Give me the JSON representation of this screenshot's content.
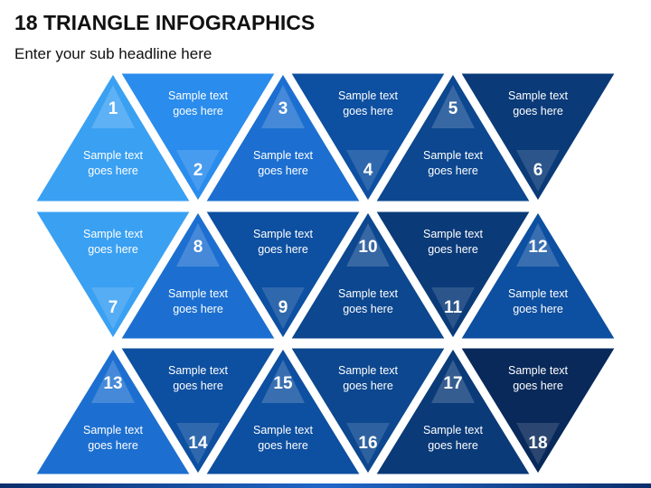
{
  "title": "18 TRIANGLE INFOGRAPHICS",
  "subtitle": "Enter your sub headline here",
  "triangles": [
    {
      "number": "1",
      "text": [
        "Sample text",
        "goes here"
      ],
      "color": "#3aa0f2"
    },
    {
      "number": "2",
      "text": [
        "Sample text",
        "goes here"
      ],
      "color": "#2a8cec"
    },
    {
      "number": "3",
      "text": [
        "Sample text",
        "goes here"
      ],
      "color": "#1c6fd0"
    },
    {
      "number": "4",
      "text": [
        "Sample text",
        "goes here"
      ],
      "color": "#0d4fa0"
    },
    {
      "number": "5",
      "text": [
        "Sample text",
        "goes here"
      ],
      "color": "#0c478f"
    },
    {
      "number": "6",
      "text": [
        "Sample text",
        "goes here"
      ],
      "color": "#0a3a78"
    },
    {
      "number": "7",
      "text": [
        "Sample text",
        "goes here"
      ],
      "color": "#3aa0f2"
    },
    {
      "number": "8",
      "text": [
        "Sample text",
        "goes here"
      ],
      "color": "#1c6fd0"
    },
    {
      "number": "9",
      "text": [
        "Sample text",
        "goes here"
      ],
      "color": "#0d4fa0"
    },
    {
      "number": "10",
      "text": [
        "Sample text",
        "goes here"
      ],
      "color": "#0c478f"
    },
    {
      "number": "11",
      "text": [
        "Sample text",
        "goes here"
      ],
      "color": "#0a3a78"
    },
    {
      "number": "12",
      "text": [
        "Sample text",
        "goes here"
      ],
      "color": "#0d4fa0"
    },
    {
      "number": "13",
      "text": [
        "Sample text",
        "goes here"
      ],
      "color": "#1c6fd0"
    },
    {
      "number": "14",
      "text": [
        "Sample text",
        "goes here"
      ],
      "color": "#0d4fa0"
    },
    {
      "number": "15",
      "text": [
        "Sample text",
        "goes here"
      ],
      "color": "#0d4fa0"
    },
    {
      "number": "16",
      "text": [
        "Sample text",
        "goes here"
      ],
      "color": "#0c478f"
    },
    {
      "number": "17",
      "text": [
        "Sample text",
        "goes here"
      ],
      "color": "#0a3a78"
    },
    {
      "number": "18",
      "text": [
        "Sample text",
        "goes here"
      ],
      "color": "#08295a"
    }
  ]
}
